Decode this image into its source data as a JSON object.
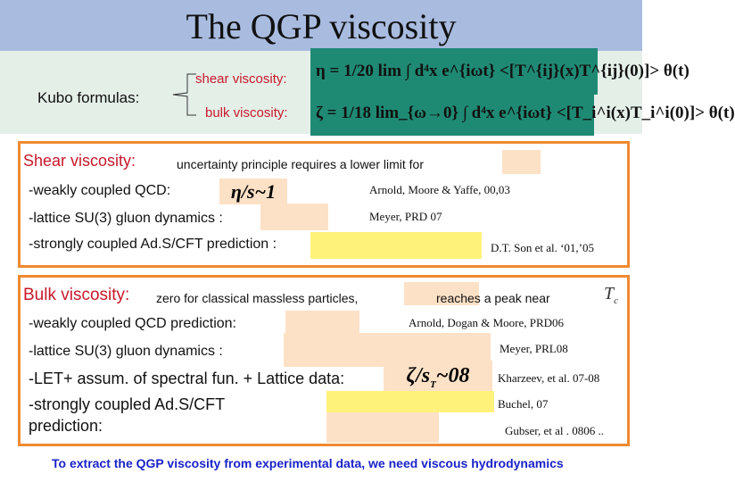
{
  "slide": {
    "title": "The QGP viscosity",
    "kubo": {
      "label": "Kubo formulas:",
      "shear_label": "shear viscosity:",
      "bulk_label": "bulk viscosity:",
      "shear_formula": "η = 1/20 lim ∫ d⁴x e^{iωt} <[T^{ij}(x)T^{ij}(0)]> θ(t)",
      "bulk_formula": "ζ = 1/18 lim_{ω→0} ∫ d⁴x e^{iωt} <[T_i^i(x)T_i^i(0)]> θ(t)"
    },
    "shear": {
      "heading": "Shear viscosity:",
      "intro": "uncertainty principle requires a lower limit for",
      "row1": "-weakly coupled QCD:",
      "row1_formula": "η/s~1",
      "row1_ref": "Arnold, Moore & Yaffe,  00,03",
      "row2": "-lattice SU(3) gluon dynamics :",
      "row2_ref": "Meyer, PRD 07",
      "row3": "-strongly coupled Ad.S/CFT prediction :",
      "row3_ref": "D.T. Son et al. ‘01,’05"
    },
    "bulk": {
      "heading": "Bulk viscosity:",
      "intro": "zero for classical massless particles,",
      "intro2": "reaches a peak near",
      "tc": "T",
      "tc_sub": "c",
      "row1": "-weakly coupled QCD prediction:",
      "row1_ref": "Arnold, Dogan & Moore,  PRD06",
      "row2": "-lattice SU(3) gluon dynamics :",
      "row2_ref": "Meyer, PRL08",
      "row3": "-LET+ assum. of spectral fun. + Lattice data:",
      "row3_formula": "ζ/s",
      "row3_formula_sub": "T",
      "row3_formula_tail": "~08",
      "row3_ref": "Kharzeev, et al. 07-08",
      "row4a": "-strongly coupled Ad.S/CFT",
      "row4b": "prediction:",
      "row4_ref1": "Buchel, 07",
      "row4_ref2": "Gubser, et al . 0806 .."
    },
    "footer": "To extract the QGP viscosity from experimental data, we need viscous hydrodynamics",
    "colors": {
      "title_bg": "#a9bce0",
      "box_border": "#f08a30",
      "formula_bg": "#1f8a74",
      "footer": "#1a23c8",
      "highlight": "#fff27a",
      "placeholder": "#fde1c7"
    }
  }
}
